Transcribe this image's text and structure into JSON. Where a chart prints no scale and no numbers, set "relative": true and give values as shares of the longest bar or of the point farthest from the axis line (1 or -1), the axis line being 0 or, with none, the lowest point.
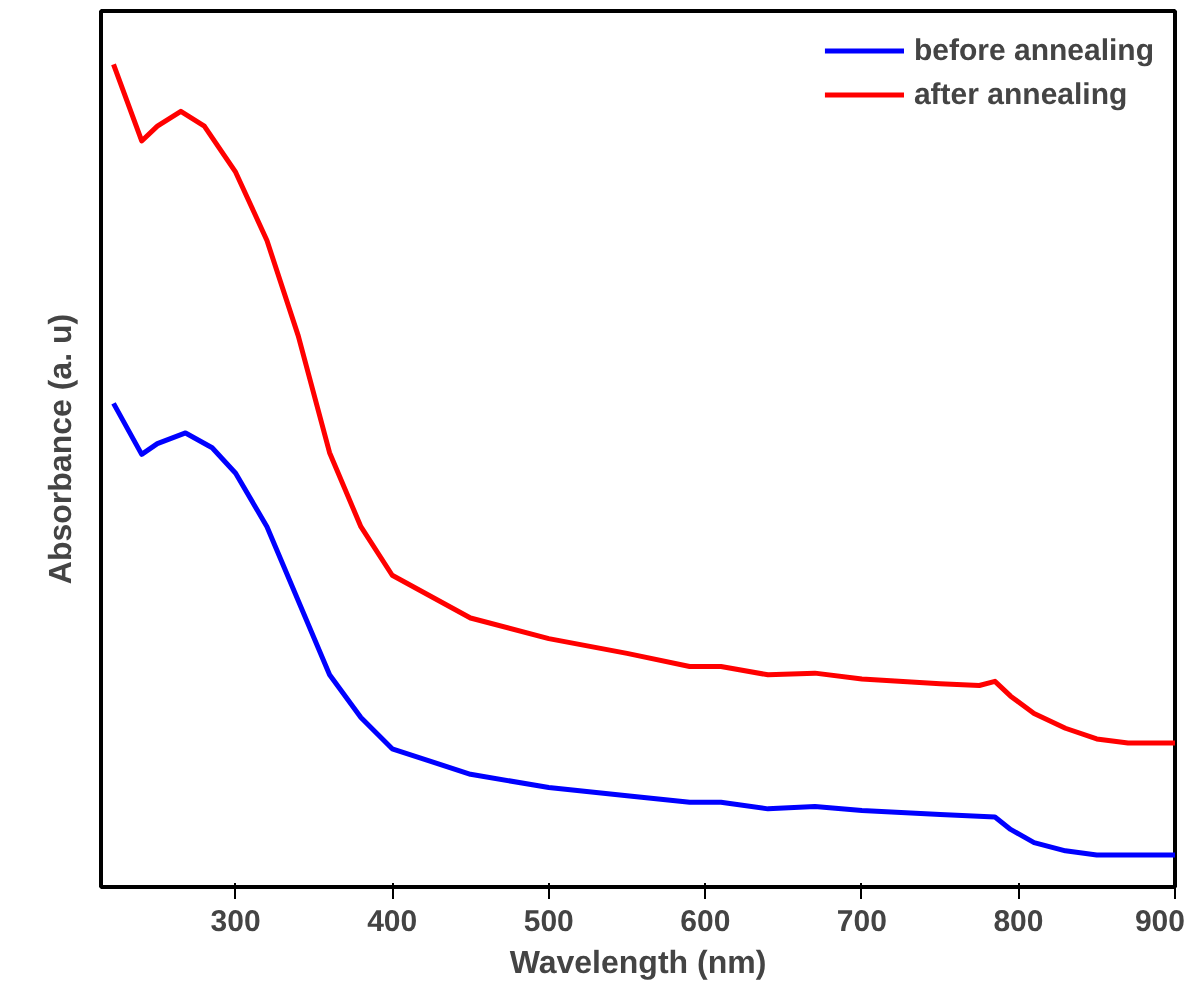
{
  "chart_data": {
    "type": "line",
    "xlabel": "Wavelength (nm)",
    "ylabel": "Absorbance (a. u)",
    "relative": true,
    "xlim": [
      214,
      900
    ],
    "xticks": [
      300,
      400,
      500,
      600,
      700,
      800,
      900
    ],
    "legend": "top right",
    "grid": false,
    "marker": "none",
    "line_style": "solid",
    "series": [
      {
        "name": "before annealing",
        "color": "#0000ff",
        "x": [
          222,
          240,
          250,
          268,
          285,
          300,
          320,
          340,
          360,
          380,
          400,
          450,
          500,
          550,
          590,
          610,
          640,
          670,
          700,
          750,
          785,
          795,
          810,
          830,
          850,
          900
        ],
        "values": [
          0.588,
          0.526,
          0.539,
          0.552,
          0.534,
          0.503,
          0.438,
          0.348,
          0.258,
          0.206,
          0.168,
          0.137,
          0.121,
          0.111,
          0.103,
          0.103,
          0.095,
          0.098,
          0.093,
          0.088,
          0.085,
          0.07,
          0.054,
          0.044,
          0.039,
          0.039
        ]
      },
      {
        "name": "after annealing",
        "color": "#ff0000",
        "x": [
          222,
          240,
          250,
          265,
          280,
          300,
          320,
          340,
          360,
          380,
          400,
          450,
          500,
          550,
          590,
          610,
          640,
          670,
          700,
          750,
          775,
          785,
          795,
          810,
          830,
          850,
          870,
          900
        ],
        "values": [
          1.0,
          0.907,
          0.925,
          0.943,
          0.925,
          0.869,
          0.786,
          0.67,
          0.528,
          0.438,
          0.379,
          0.327,
          0.302,
          0.284,
          0.268,
          0.268,
          0.258,
          0.26,
          0.253,
          0.247,
          0.245,
          0.25,
          0.232,
          0.211,
          0.193,
          0.18,
          0.175,
          0.175
        ]
      }
    ]
  }
}
